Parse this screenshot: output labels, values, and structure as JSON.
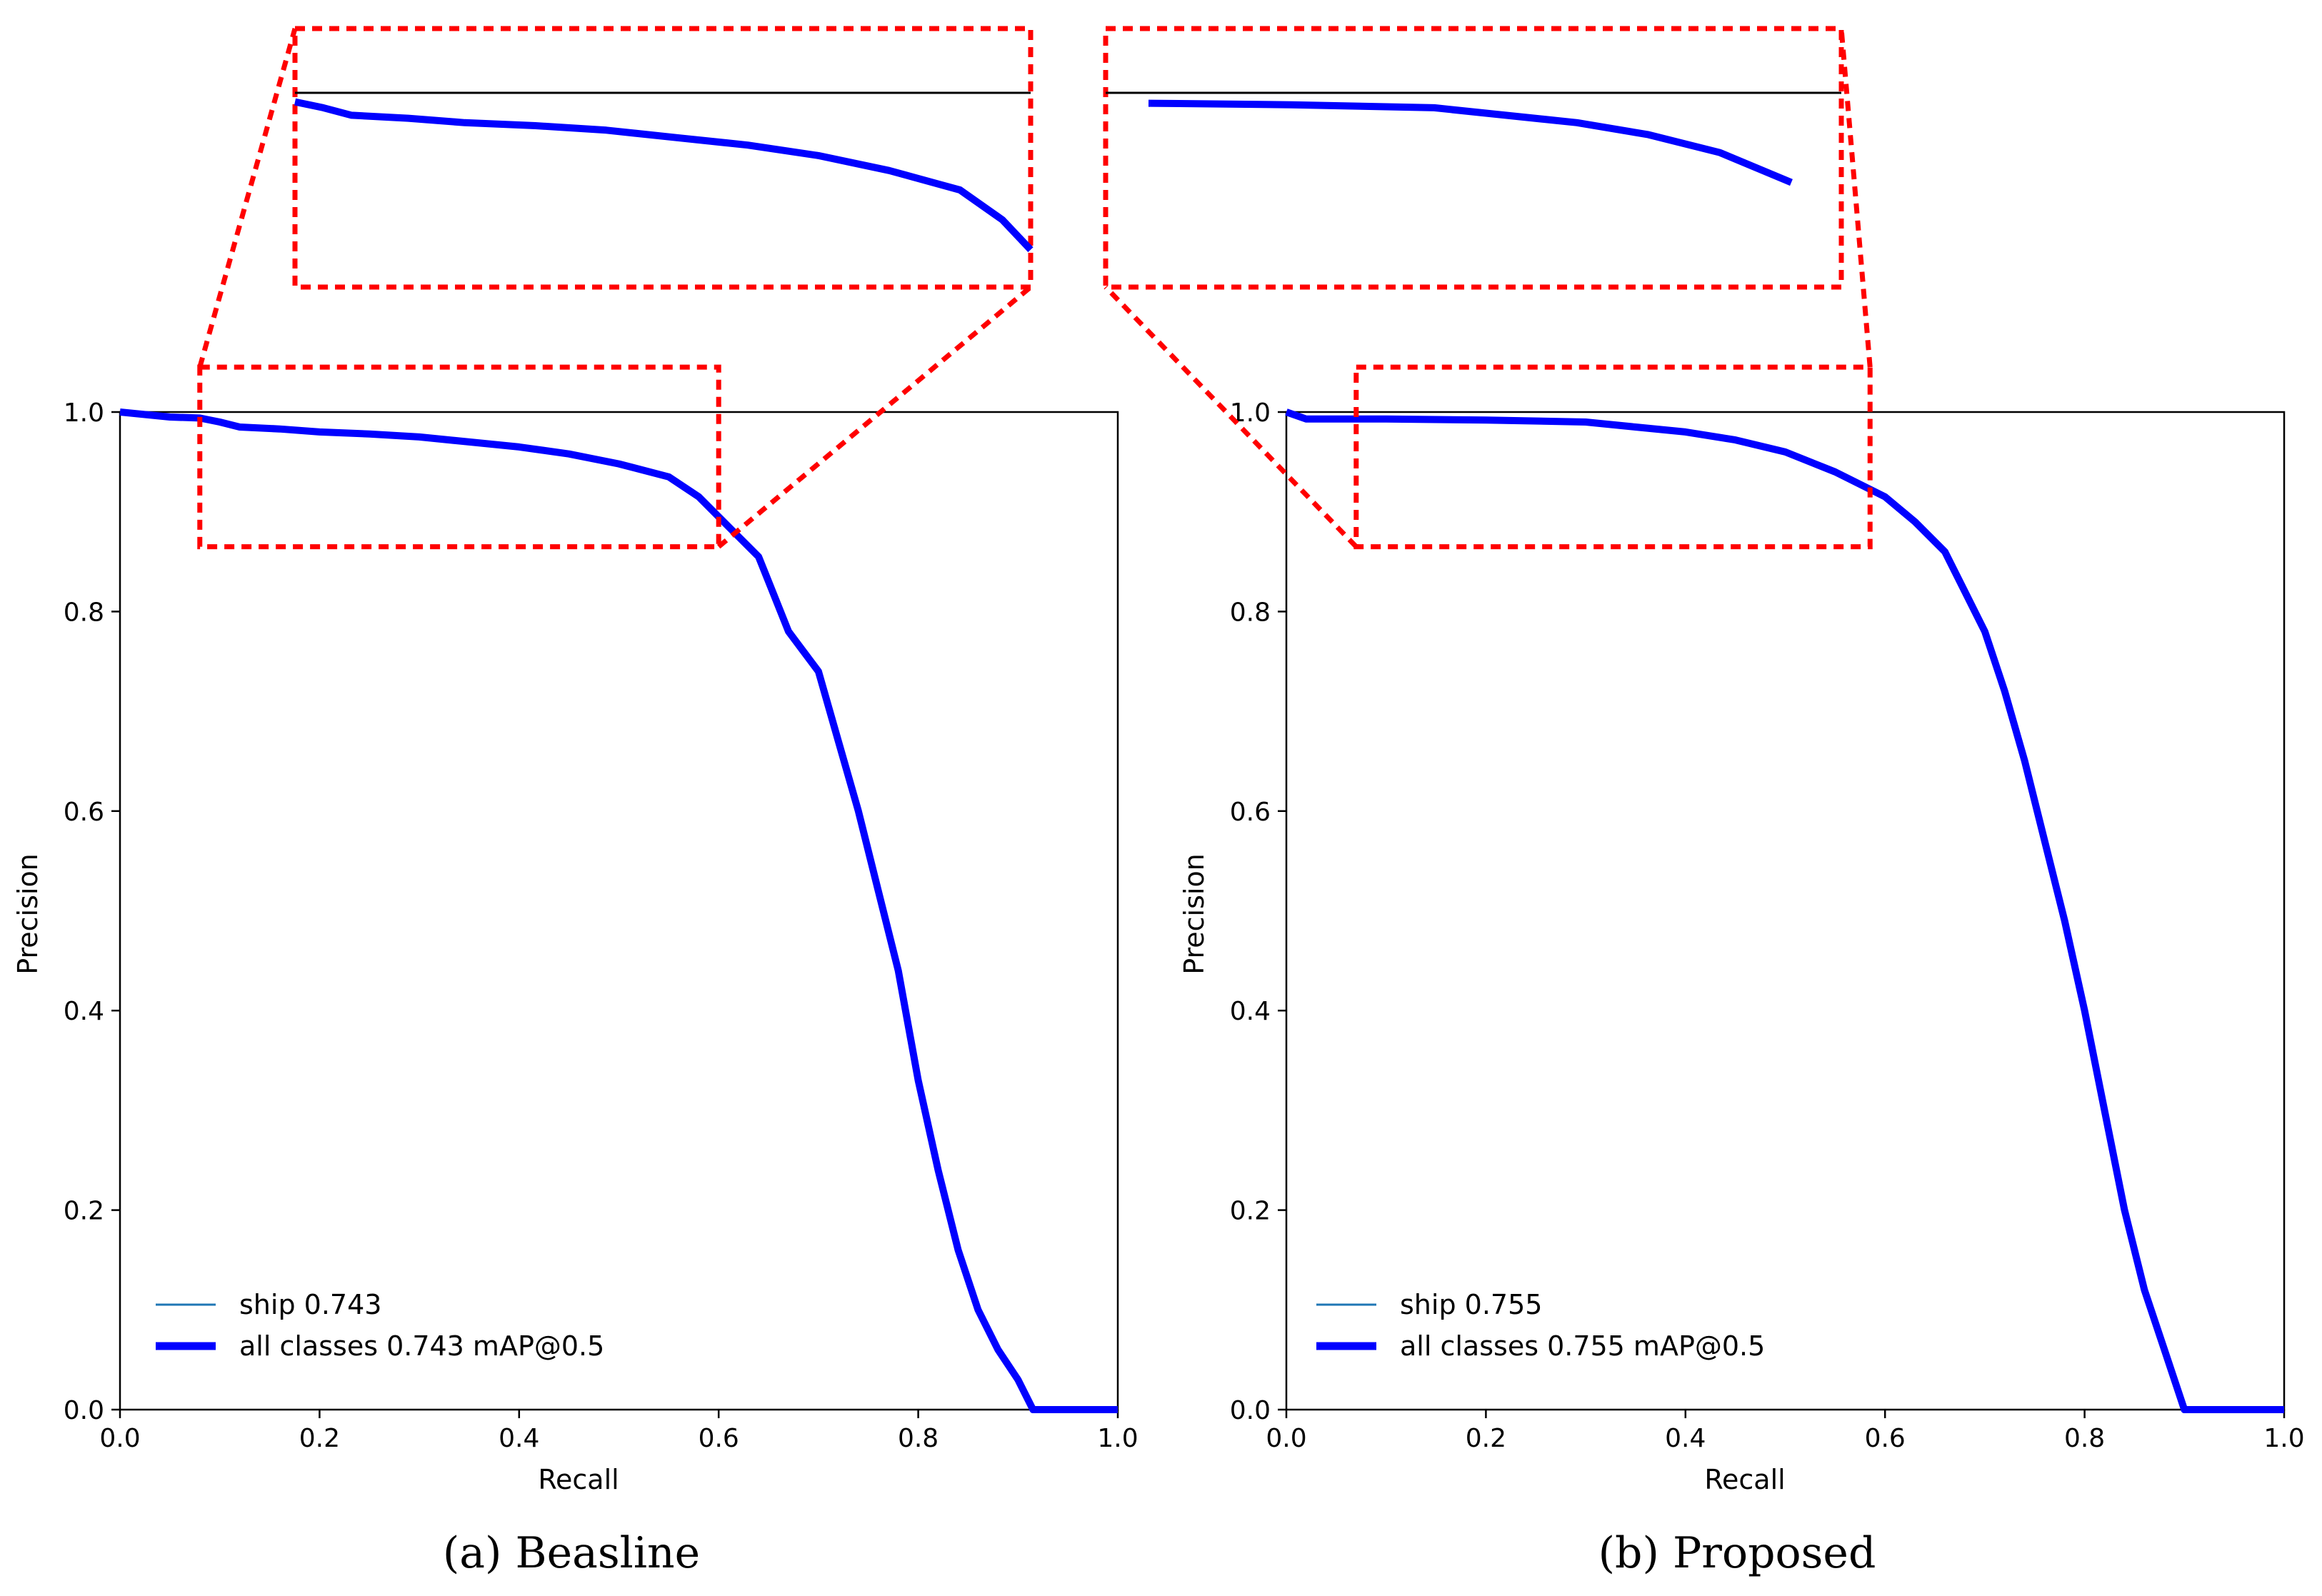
{
  "chart_data": [
    {
      "type": "line",
      "caption": "(a) Beasline",
      "xlabel": "Recall",
      "ylabel": "Precision",
      "xlim": [
        0,
        1
      ],
      "ylim": [
        0,
        1
      ],
      "xticks": [
        "0.0",
        "0.2",
        "0.4",
        "0.6",
        "0.8",
        "1.0"
      ],
      "yticks": [
        "0.0",
        "0.2",
        "0.4",
        "0.6",
        "0.8",
        "1.0"
      ],
      "legend_position": "lower-left",
      "series": [
        {
          "name": "ship 0.743",
          "color": "#1f77b4",
          "style": "thin",
          "points": []
        },
        {
          "name": "all classes 0.743 mAP@0.5",
          "color": "#0000ff",
          "style": "thick",
          "points": [
            [
              0.0,
              1.0
            ],
            [
              0.05,
              0.995
            ],
            [
              0.08,
              0.994
            ],
            [
              0.1,
              0.99
            ],
            [
              0.12,
              0.985
            ],
            [
              0.16,
              0.983
            ],
            [
              0.2,
              0.98
            ],
            [
              0.25,
              0.978
            ],
            [
              0.3,
              0.975
            ],
            [
              0.35,
              0.97
            ],
            [
              0.4,
              0.965
            ],
            [
              0.45,
              0.958
            ],
            [
              0.5,
              0.948
            ],
            [
              0.55,
              0.935
            ],
            [
              0.58,
              0.915
            ],
            [
              0.6,
              0.895
            ],
            [
              0.62,
              0.875
            ],
            [
              0.64,
              0.855
            ],
            [
              0.65,
              0.83
            ],
            [
              0.67,
              0.78
            ],
            [
              0.7,
              0.74
            ],
            [
              0.72,
              0.67
            ],
            [
              0.74,
              0.6
            ],
            [
              0.76,
              0.52
            ],
            [
              0.78,
              0.44
            ],
            [
              0.8,
              0.33
            ],
            [
              0.82,
              0.24
            ],
            [
              0.84,
              0.16
            ],
            [
              0.86,
              0.1
            ],
            [
              0.88,
              0.06
            ],
            [
              0.9,
              0.03
            ],
            [
              0.915,
              0.0
            ],
            [
              1.0,
              0.0
            ]
          ]
        }
      ],
      "zoom_box": {
        "x": [
          0.08,
          0.6
        ],
        "y": [
          0.865,
          1.045
        ]
      }
    },
    {
      "type": "line",
      "caption": "(b) Proposed",
      "xlabel": "Recall",
      "ylabel": "Precision",
      "xlim": [
        0,
        1
      ],
      "ylim": [
        0,
        1
      ],
      "xticks": [
        "0.0",
        "0.2",
        "0.4",
        "0.6",
        "0.8",
        "1.0"
      ],
      "yticks": [
        "0.0",
        "0.2",
        "0.4",
        "0.6",
        "0.8",
        "1.0"
      ],
      "legend_position": "lower-left",
      "series": [
        {
          "name": "ship 0.755",
          "color": "#1f77b4",
          "style": "thin",
          "points": []
        },
        {
          "name": "all classes 0.755 mAP@0.5",
          "color": "#0000ff",
          "style": "thick",
          "points": [
            [
              0.0,
              1.0
            ],
            [
              0.02,
              0.993
            ],
            [
              0.1,
              0.993
            ],
            [
              0.2,
              0.992
            ],
            [
              0.3,
              0.99
            ],
            [
              0.35,
              0.985
            ],
            [
              0.4,
              0.98
            ],
            [
              0.45,
              0.972
            ],
            [
              0.5,
              0.96
            ],
            [
              0.55,
              0.94
            ],
            [
              0.6,
              0.915
            ],
            [
              0.63,
              0.89
            ],
            [
              0.66,
              0.86
            ],
            [
              0.68,
              0.82
            ],
            [
              0.7,
              0.78
            ],
            [
              0.72,
              0.72
            ],
            [
              0.74,
              0.65
            ],
            [
              0.76,
              0.57
            ],
            [
              0.78,
              0.49
            ],
            [
              0.8,
              0.4
            ],
            [
              0.82,
              0.3
            ],
            [
              0.84,
              0.2
            ],
            [
              0.86,
              0.12
            ],
            [
              0.88,
              0.06
            ],
            [
              0.9,
              0.0
            ],
            [
              1.0,
              0.0
            ]
          ]
        }
      ],
      "zoom_box": {
        "x": [
          0.07,
          0.585
        ],
        "y": [
          0.865,
          1.045
        ]
      }
    }
  ],
  "colors": {
    "zoom": "#ff0000",
    "curve": "#0000ff",
    "ship": "#1f77b4",
    "reference": "#000000"
  }
}
